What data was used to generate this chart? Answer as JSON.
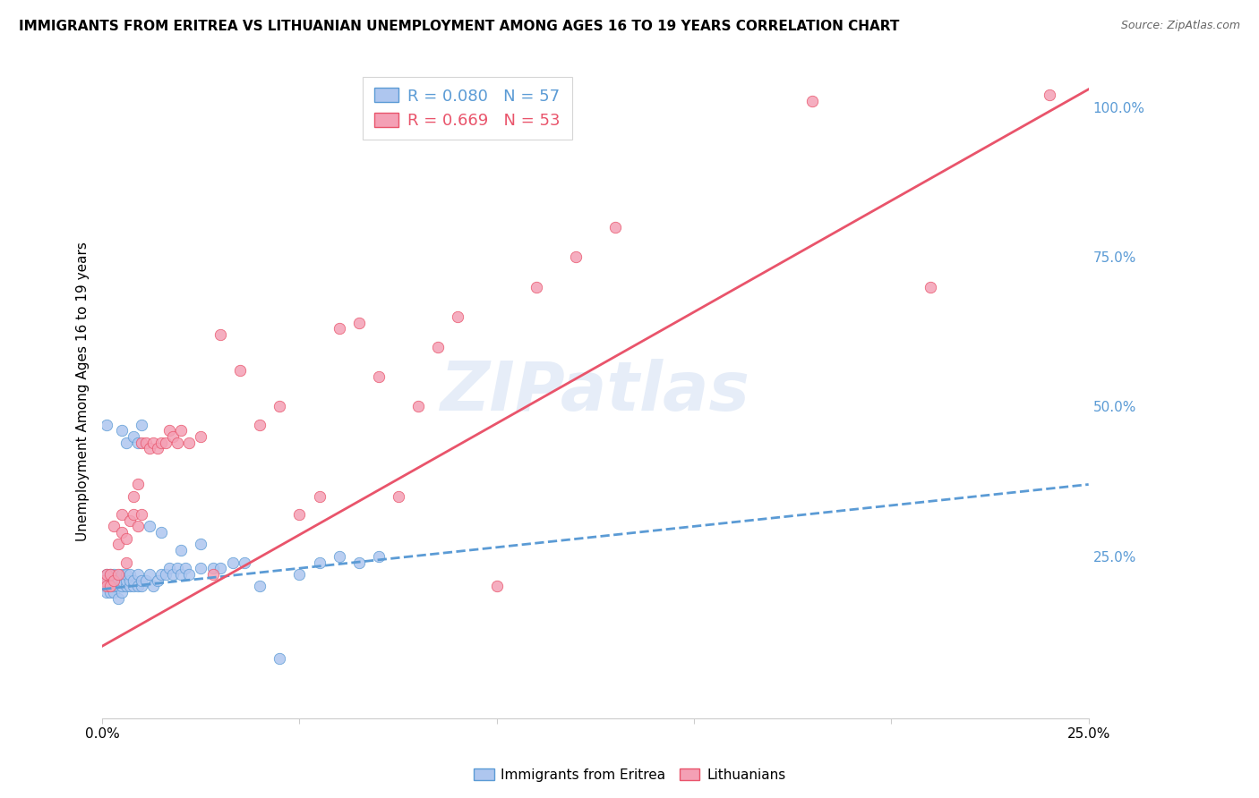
{
  "title": "IMMIGRANTS FROM ERITREA VS LITHUANIAN UNEMPLOYMENT AMONG AGES 16 TO 19 YEARS CORRELATION CHART",
  "source": "Source: ZipAtlas.com",
  "ylabel": "Unemployment Among Ages 16 to 19 years",
  "xlim": [
    0.0,
    0.25
  ],
  "ylim": [
    -0.02,
    1.07
  ],
  "xticks": [
    0.0,
    0.05,
    0.1,
    0.15,
    0.2,
    0.25
  ],
  "xticklabels": [
    "0.0%",
    "",
    "",
    "",
    "",
    "25.0%"
  ],
  "yticks_right": [
    0.25,
    0.5,
    0.75,
    1.0
  ],
  "yticklabels_right": [
    "25.0%",
    "50.0%",
    "75.0%",
    "100.0%"
  ],
  "background_color": "#ffffff",
  "grid_color": "#d8d8d8",
  "watermark": "ZIPatlas",
  "legend_r1": "0.080",
  "legend_n1": "57",
  "legend_r2": "0.669",
  "legend_n2": "53",
  "series1_color": "#aec6ef",
  "series2_color": "#f4a0b5",
  "line1_color": "#5b9bd5",
  "line2_color": "#e9546b",
  "title_fontsize": 11,
  "source_fontsize": 9,
  "s1_x": [
    0.0005,
    0.001,
    0.001,
    0.001,
    0.0015,
    0.002,
    0.002,
    0.002,
    0.002,
    0.0025,
    0.003,
    0.003,
    0.003,
    0.003,
    0.004,
    0.004,
    0.004,
    0.005,
    0.005,
    0.005,
    0.005,
    0.006,
    0.006,
    0.006,
    0.007,
    0.007,
    0.007,
    0.008,
    0.008,
    0.009,
    0.009,
    0.01,
    0.01,
    0.011,
    0.012,
    0.013,
    0.014,
    0.015,
    0.016,
    0.017,
    0.018,
    0.019,
    0.02,
    0.021,
    0.022,
    0.025,
    0.028,
    0.03,
    0.033,
    0.036,
    0.04,
    0.045,
    0.05,
    0.055,
    0.06,
    0.065,
    0.07
  ],
  "s1_y": [
    0.2,
    0.19,
    0.21,
    0.22,
    0.2,
    0.19,
    0.2,
    0.21,
    0.22,
    0.2,
    0.19,
    0.2,
    0.21,
    0.22,
    0.18,
    0.2,
    0.21,
    0.19,
    0.2,
    0.21,
    0.22,
    0.2,
    0.21,
    0.22,
    0.2,
    0.21,
    0.22,
    0.2,
    0.21,
    0.2,
    0.22,
    0.2,
    0.21,
    0.21,
    0.22,
    0.2,
    0.21,
    0.22,
    0.22,
    0.23,
    0.22,
    0.23,
    0.22,
    0.23,
    0.22,
    0.23,
    0.23,
    0.23,
    0.24,
    0.24,
    0.2,
    0.08,
    0.22,
    0.24,
    0.25,
    0.24,
    0.25
  ],
  "s1_outliers_x": [
    0.001,
    0.005,
    0.006,
    0.008,
    0.009,
    0.01,
    0.012,
    0.015,
    0.02,
    0.025
  ],
  "s1_outliers_y": [
    0.47,
    0.46,
    0.44,
    0.45,
    0.44,
    0.47,
    0.3,
    0.29,
    0.26,
    0.27
  ],
  "s2_x": [
    0.0005,
    0.001,
    0.001,
    0.002,
    0.002,
    0.003,
    0.003,
    0.004,
    0.004,
    0.005,
    0.005,
    0.006,
    0.006,
    0.007,
    0.008,
    0.008,
    0.009,
    0.009,
    0.01,
    0.01,
    0.011,
    0.012,
    0.013,
    0.014,
    0.015,
    0.016,
    0.017,
    0.018,
    0.019,
    0.02,
    0.022,
    0.025,
    0.028,
    0.03,
    0.035,
    0.04,
    0.045,
    0.05,
    0.055,
    0.06,
    0.065,
    0.07,
    0.075,
    0.08,
    0.085,
    0.09,
    0.1,
    0.11,
    0.12,
    0.13,
    0.18,
    0.21,
    0.24
  ],
  "s2_y": [
    0.21,
    0.2,
    0.22,
    0.2,
    0.22,
    0.21,
    0.3,
    0.22,
    0.27,
    0.29,
    0.32,
    0.24,
    0.28,
    0.31,
    0.32,
    0.35,
    0.3,
    0.37,
    0.32,
    0.44,
    0.44,
    0.43,
    0.44,
    0.43,
    0.44,
    0.44,
    0.46,
    0.45,
    0.44,
    0.46,
    0.44,
    0.45,
    0.22,
    0.62,
    0.56,
    0.47,
    0.5,
    0.32,
    0.35,
    0.63,
    0.64,
    0.55,
    0.35,
    0.5,
    0.6,
    0.65,
    0.2,
    0.7,
    0.75,
    0.8,
    1.01,
    0.7,
    1.02
  ],
  "line1_x0": 0.0,
  "line1_x1": 0.25,
  "line1_y0": 0.195,
  "line1_y1": 0.37,
  "line2_x0": 0.0,
  "line2_x1": 0.25,
  "line2_y0": 0.1,
  "line2_y1": 1.03
}
